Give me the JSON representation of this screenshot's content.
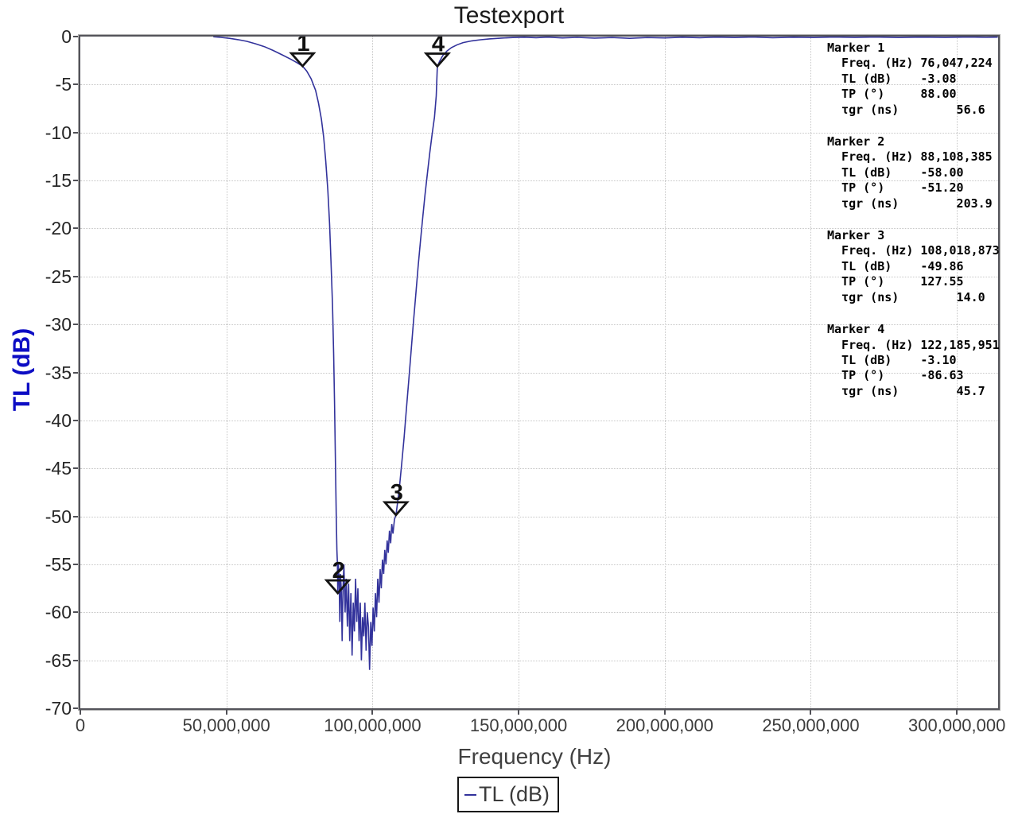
{
  "title": "Testexport",
  "axes": {
    "x": {
      "label": "Frequency (Hz)",
      "min": 0,
      "max": 314100000,
      "ticks": [
        {
          "v": 0,
          "label": "0"
        },
        {
          "v": 50000000,
          "label": "50,000,000"
        },
        {
          "v": 100000000,
          "label": "100,000,000"
        },
        {
          "v": 150000000,
          "label": "150,000,000"
        },
        {
          "v": 200000000,
          "label": "200,000,000"
        },
        {
          "v": 250000000,
          "label": "250,000,000"
        },
        {
          "v": 300000000,
          "label": "300,000,000"
        }
      ]
    },
    "y": {
      "label": "TL (dB)",
      "min": -70,
      "max": 0,
      "ticks": [
        {
          "v": 0,
          "label": "0"
        },
        {
          "v": -5,
          "label": "-5"
        },
        {
          "v": -10,
          "label": "-10"
        },
        {
          "v": -15,
          "label": "-15"
        },
        {
          "v": -20,
          "label": "-20"
        },
        {
          "v": -25,
          "label": "-25"
        },
        {
          "v": -30,
          "label": "-30"
        },
        {
          "v": -35,
          "label": "-35"
        },
        {
          "v": -40,
          "label": "-40"
        },
        {
          "v": -45,
          "label": "-45"
        },
        {
          "v": -50,
          "label": "-50"
        },
        {
          "v": -55,
          "label": "-55"
        },
        {
          "v": -60,
          "label": "-60"
        },
        {
          "v": -65,
          "label": "-65"
        },
        {
          "v": -70,
          "label": "-70"
        }
      ]
    }
  },
  "legend": {
    "label": "TL (dB)",
    "color": "#32329b"
  },
  "chart_data": {
    "type": "line",
    "title": "Testexport",
    "xlabel": "Frequency (Hz)",
    "ylabel": "TL (dB)",
    "xlim": [
      0,
      314100000
    ],
    "ylim": [
      -70,
      0
    ],
    "grid": true,
    "legend_position": "bottom-center",
    "x_unit_in_points": "MHz",
    "series": [
      {
        "name": "TL (dB)",
        "color": "#32329b",
        "points": [
          [
            45.5,
            -0.02
          ],
          [
            48,
            -0.08
          ],
          [
            51,
            -0.18
          ],
          [
            54,
            -0.32
          ],
          [
            57,
            -0.5
          ],
          [
            60,
            -0.75
          ],
          [
            63,
            -1.05
          ],
          [
            66,
            -1.45
          ],
          [
            69,
            -1.9
          ],
          [
            72,
            -2.35
          ],
          [
            74,
            -2.7
          ],
          [
            76.047,
            -3.08
          ],
          [
            77.5,
            -3.6
          ],
          [
            79,
            -4.4
          ],
          [
            80.5,
            -5.6
          ],
          [
            81.5,
            -6.9
          ],
          [
            82.5,
            -8.6
          ],
          [
            83.3,
            -10.5
          ],
          [
            84,
            -13
          ],
          [
            84.7,
            -16
          ],
          [
            85.3,
            -19.5
          ],
          [
            85.8,
            -23.5
          ],
          [
            86.3,
            -28
          ],
          [
            86.7,
            -33
          ],
          [
            87,
            -38
          ],
          [
            87.3,
            -44
          ],
          [
            87.6,
            -50
          ],
          [
            87.8,
            -53.5
          ],
          [
            88,
            -55
          ],
          [
            88.108,
            -58
          ],
          [
            88.3,
            -54.8
          ],
          [
            88.6,
            -57
          ],
          [
            88.8,
            -61
          ],
          [
            89,
            -56
          ],
          [
            89.3,
            -57.5
          ],
          [
            89.6,
            -63
          ],
          [
            89.9,
            -57.5
          ],
          [
            90.2,
            -55
          ],
          [
            90.6,
            -60
          ],
          [
            91,
            -56.5
          ],
          [
            91.4,
            -61.5
          ],
          [
            91.8,
            -57
          ],
          [
            92.2,
            -63
          ],
          [
            92.6,
            -58
          ],
          [
            93,
            -64.5
          ],
          [
            93.4,
            -59
          ],
          [
            93.8,
            -62
          ],
          [
            94.2,
            -56.5
          ],
          [
            94.6,
            -61
          ],
          [
            95,
            -57.5
          ],
          [
            95.4,
            -63
          ],
          [
            95.8,
            -59
          ],
          [
            96.2,
            -65
          ],
          [
            96.6,
            -60.5
          ],
          [
            97,
            -62.5
          ],
          [
            97.4,
            -59
          ],
          [
            97.8,
            -64
          ],
          [
            98.2,
            -60
          ],
          [
            98.6,
            -61.5
          ],
          [
            99,
            -66
          ],
          [
            99.4,
            -61
          ],
          [
            99.8,
            -63.5
          ],
          [
            100.2,
            -59.5
          ],
          [
            100.6,
            -62
          ],
          [
            101,
            -58
          ],
          [
            101.4,
            -60.5
          ],
          [
            101.8,
            -56.5
          ],
          [
            102.2,
            -59
          ],
          [
            102.6,
            -55.5
          ],
          [
            103,
            -57.5
          ],
          [
            103.4,
            -54.5
          ],
          [
            103.8,
            -56
          ],
          [
            104.2,
            -53.5
          ],
          [
            104.6,
            -55
          ],
          [
            105,
            -52.5
          ],
          [
            105.4,
            -53.8
          ],
          [
            105.8,
            -51.5
          ],
          [
            106.2,
            -52.8
          ],
          [
            106.6,
            -50.8
          ],
          [
            107,
            -51.8
          ],
          [
            107.5,
            -50.3
          ],
          [
            108.019,
            -49.86
          ],
          [
            108.6,
            -48.5
          ],
          [
            109.2,
            -47
          ],
          [
            110,
            -44.5
          ],
          [
            110.8,
            -41.8
          ],
          [
            111.6,
            -38.8
          ],
          [
            112.4,
            -35.8
          ],
          [
            113.2,
            -32.8
          ],
          [
            114,
            -29.8
          ],
          [
            114.8,
            -26.9
          ],
          [
            115.6,
            -24
          ],
          [
            116.4,
            -21.3
          ],
          [
            117.2,
            -18.8
          ],
          [
            118,
            -16.4
          ],
          [
            118.8,
            -14.2
          ],
          [
            119.6,
            -12.1
          ],
          [
            120.4,
            -10.2
          ],
          [
            121.2,
            -8.4
          ],
          [
            121.8,
            -6.2
          ],
          [
            122.186,
            -3.1
          ],
          [
            123,
            -2.55
          ],
          [
            124,
            -2.0
          ],
          [
            125.5,
            -1.5
          ],
          [
            127,
            -1.15
          ],
          [
            129,
            -0.85
          ],
          [
            131,
            -0.63
          ],
          [
            134,
            -0.45
          ],
          [
            137,
            -0.33
          ],
          [
            140,
            -0.24
          ],
          [
            144,
            -0.16
          ],
          [
            148,
            -0.1
          ],
          [
            152,
            -0.07
          ],
          [
            156,
            -0.12
          ],
          [
            160,
            -0.06
          ],
          [
            165,
            -0.14
          ],
          [
            170,
            -0.08
          ],
          [
            176,
            -0.16
          ],
          [
            182,
            -0.1
          ],
          [
            188,
            -0.18
          ],
          [
            194,
            -0.1
          ],
          [
            200,
            -0.14
          ],
          [
            206,
            -0.07
          ],
          [
            212,
            -0.12
          ],
          [
            218,
            -0.06
          ],
          [
            224,
            -0.1
          ],
          [
            230,
            -0.05
          ],
          [
            237,
            -0.12
          ],
          [
            244,
            -0.07
          ],
          [
            251,
            -0.1
          ],
          [
            258,
            -0.05
          ],
          [
            265,
            -0.09
          ],
          [
            272,
            -0.05
          ],
          [
            280,
            -0.1
          ],
          [
            288,
            -0.06
          ],
          [
            296,
            -0.09
          ],
          [
            304,
            -0.05
          ],
          [
            310,
            -0.08
          ],
          [
            314,
            -0.06
          ]
        ]
      }
    ],
    "markers": [
      {
        "n": "1",
        "freq_hz": 76047224,
        "tl_db": -3.08,
        "tp_deg": 88.0,
        "tgr_ns": 56.6
      },
      {
        "n": "2",
        "freq_hz": 88108385,
        "tl_db": -58.0,
        "tp_deg": -51.2,
        "tgr_ns": 203.9
      },
      {
        "n": "3",
        "freq_hz": 108018873,
        "tl_db": -49.86,
        "tp_deg": 127.55,
        "tgr_ns": 14.0
      },
      {
        "n": "4",
        "freq_hz": 122185951,
        "tl_db": -3.1,
        "tp_deg": -86.63,
        "tgr_ns": 45.7
      }
    ]
  },
  "marker_panel": {
    "blocks": [
      {
        "lines": [
          "Marker 1",
          "  Freq. (Hz) 76,047,224",
          "  TL (dB)    -3.08",
          "  TP (°)     88.00",
          "  τgr (ns)        56.6"
        ]
      },
      {
        "lines": [
          "Marker 2",
          "  Freq. (Hz) 88,108,385",
          "  TL (dB)    -58.00",
          "  TP (°)     -51.20",
          "  τgr (ns)        203.9"
        ]
      },
      {
        "lines": [
          "Marker 3",
          "  Freq. (Hz) 108,018,873",
          "  TL (dB)    -49.86",
          "  TP (°)     127.55",
          "  τgr (ns)        14.0"
        ]
      },
      {
        "lines": [
          "Marker 4",
          "  Freq. (Hz) 122,185,951",
          "  TL (dB)    -3.10",
          "  TP (°)     -86.63",
          "  τgr (ns)        45.7"
        ]
      }
    ]
  }
}
